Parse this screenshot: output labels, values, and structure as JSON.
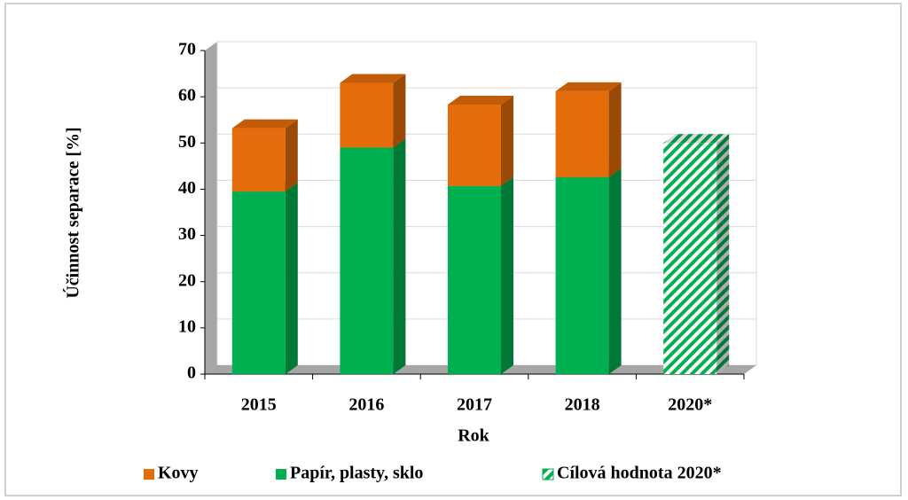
{
  "chart_data": {
    "type": "bar3d_stacked",
    "categories": [
      "2015",
      "2016",
      "2017",
      "2018",
      "2020*"
    ],
    "series": [
      {
        "name": "Kovy",
        "color": "#e46c0a",
        "values": [
          13.7,
          14,
          17.6,
          18.6,
          null
        ]
      },
      {
        "name": "Papír, plasty, sklo",
        "color": "#00b050",
        "values": [
          39.5,
          49,
          40.7,
          42.6,
          null
        ]
      },
      {
        "name": "Cílová hodnota  2020*",
        "color": "#00b050",
        "pattern": "hatch",
        "values": [
          null,
          null,
          null,
          null,
          50
        ]
      }
    ],
    "x_label": "Rok",
    "y_label": "Účinnost separace [%]",
    "ylim": [
      0,
      70
    ],
    "yticks": [
      0,
      10,
      20,
      30,
      40,
      50,
      60,
      70
    ],
    "grid": true,
    "legend": "bottom"
  }
}
